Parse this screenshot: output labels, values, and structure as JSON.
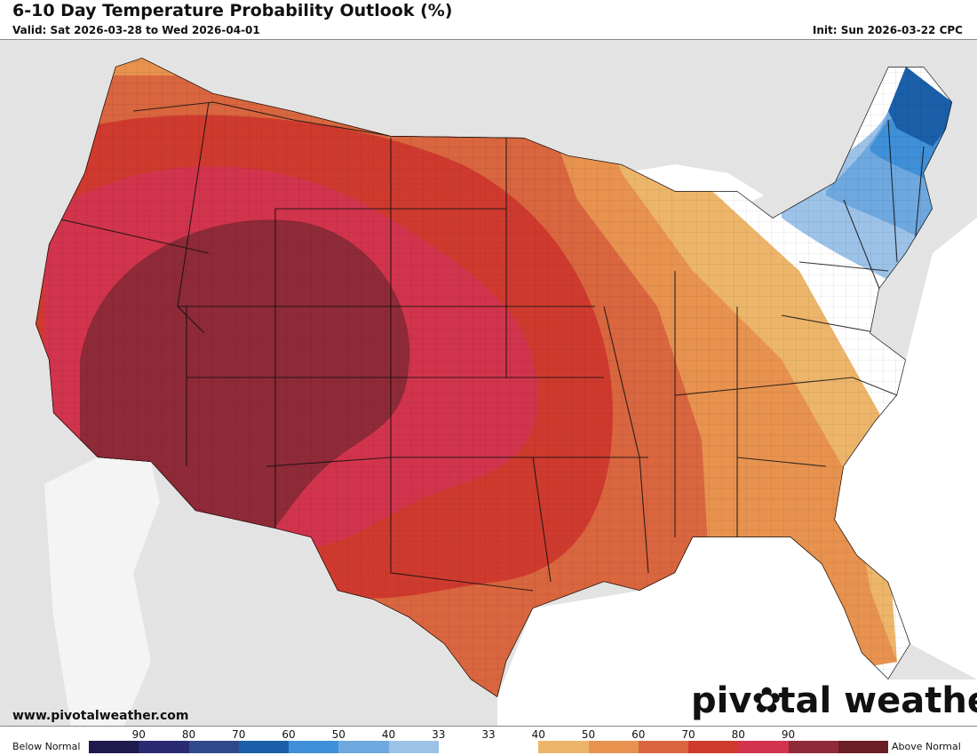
{
  "header": {
    "title": "6-10 Day Temperature Probability Outlook (%)",
    "valid": "Valid: Sat 2026-03-28 to Wed 2026-04-01",
    "init": "Init: Sun 2026-03-22 CPC"
  },
  "footer": {
    "website": "www.pivotalweather.com",
    "brand_before": "piv",
    "brand_after": "tal weather"
  },
  "legend": {
    "below_label": "Below Normal",
    "above_label": "Above Normal",
    "colors": [
      "#1f1a4d",
      "#2a2a73",
      "#2f4a8a",
      "#1a5fa8",
      "#3f90d8",
      "#6ea8df",
      "#9dc2e8",
      "#ffffff",
      "#ffffff",
      "#edb56a",
      "#e8924f",
      "#d9663f",
      "#cf3a2e",
      "#d2344d",
      "#8f2a38",
      "#6b1f24"
    ],
    "tick_labels": [
      "90",
      "80",
      "70",
      "60",
      "50",
      "40",
      "33",
      "33",
      "40",
      "50",
      "60",
      "70",
      "80",
      "90"
    ]
  },
  "map": {
    "region": "Contiguous United States",
    "above_colors": {
      "p33": "#edb56a",
      "p40": "#e8924f",
      "p50": "#d9663f",
      "p60": "#cf3a2e",
      "p70": "#d2344d",
      "p80": "#8f2a38"
    },
    "below_colors": {
      "p33": "#9dc2e8",
      "p40": "#6ea8df",
      "p50": "#3f90d8",
      "p60": "#1a5fa8"
    },
    "land_outside": "#e3e3e3",
    "water": "#ffffff"
  }
}
